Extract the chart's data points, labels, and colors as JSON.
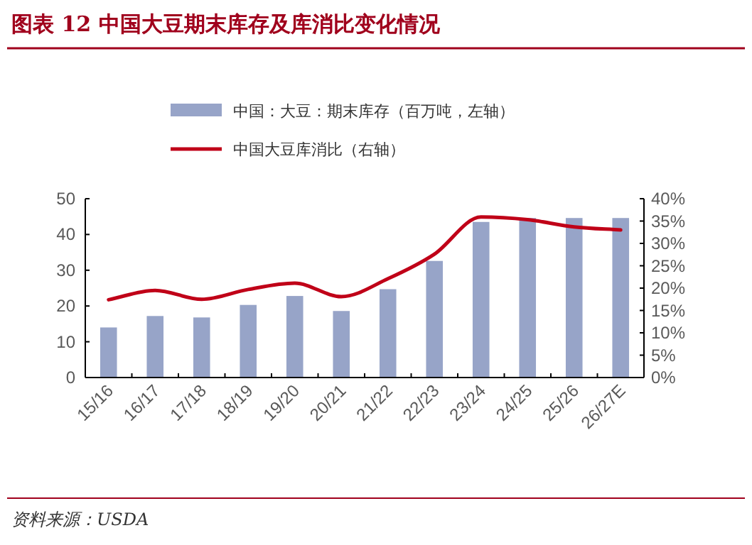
{
  "chart_data": {
    "type": "bar",
    "title": "图表 12    中国大豆期末库存及库消比变化情况",
    "categories": [
      "15/16",
      "16/17",
      "17/18",
      "18/19",
      "19/20",
      "20/21",
      "21/22",
      "22/23",
      "23/24",
      "24/25",
      "25/26",
      "26/27E"
    ],
    "series": [
      {
        "name": "中国：大豆：期末库存（百万吨，左轴）",
        "color": "#97a4c8",
        "values": [
          14,
          17.2,
          16.8,
          20.3,
          22.8,
          18.6,
          24.7,
          32.6,
          43.5,
          44.6,
          44.6,
          44.6
        ]
      },
      {
        "name": "中国大豆库消比（右轴）",
        "type": "line",
        "axis": "y2",
        "color": "#c00018",
        "values": [
          17.4,
          19.5,
          17.5,
          19.7,
          21.1,
          18.1,
          22.1,
          27.6,
          35.9,
          35.3,
          33.7,
          33.0
        ]
      }
    ],
    "ylim": [
      0,
      50
    ],
    "yticks": [
      0,
      10,
      20,
      30,
      40,
      50
    ],
    "y2lim": [
      0,
      40
    ],
    "y2ticks": [
      {
        "value": 0,
        "label": "0%"
      },
      {
        "value": 5,
        "label": "5%"
      },
      {
        "value": 10,
        "label": "10%"
      },
      {
        "value": 15,
        "label": "15%"
      },
      {
        "value": 20,
        "label": "20%"
      },
      {
        "value": 25,
        "label": "25%"
      },
      {
        "value": 30,
        "label": "30%"
      },
      {
        "value": 35,
        "label": "35%"
      },
      {
        "value": 40,
        "label": "40%"
      }
    ],
    "legend": "top",
    "grid": false,
    "annotations": [
      "资料来源：USDA"
    ]
  }
}
